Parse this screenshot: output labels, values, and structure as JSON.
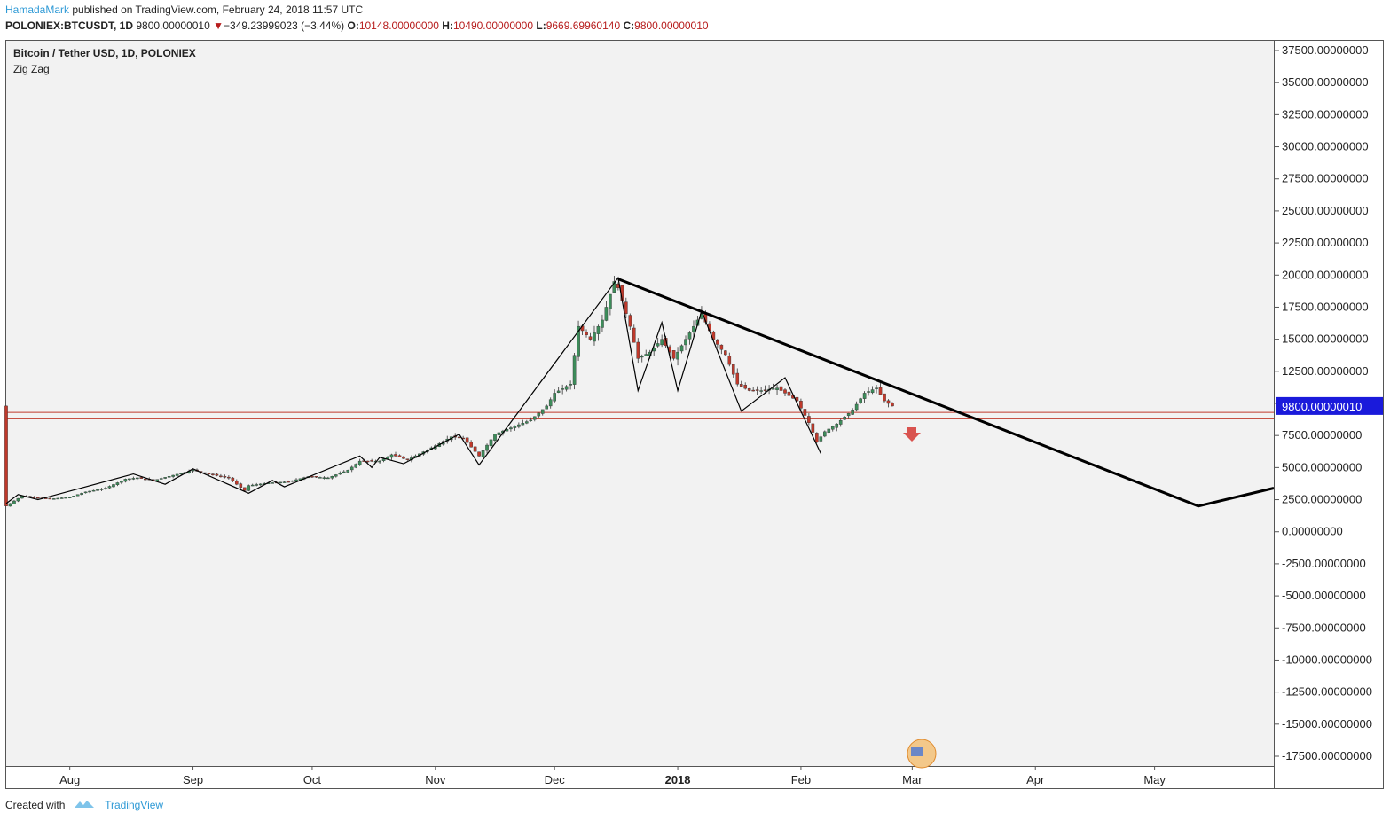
{
  "header": {
    "author": "HamadaMark",
    "published_text": "published on TradingView.com, February 24, 2018 11:57 UTC",
    "symbol": "POLONIEX:BTCUSDT, 1D",
    "last": "9800.00000010",
    "change": "−349.23999023 (−3.44%)",
    "open_label": "O:",
    "open": "10148.00000000",
    "high_label": "H:",
    "high": "10490.00000000",
    "low_label": "L:",
    "low": "9669.69960140",
    "close_label": "C:",
    "close": "9800.00000010"
  },
  "legend": {
    "title": "Bitcoin / Tether USD, 1D, POLONIEX",
    "indicator": "Zig Zag"
  },
  "footer": {
    "created_with": "Created with",
    "brand": "TradingView"
  },
  "colors": {
    "up": "#3d8c5a",
    "down": "#c0392b",
    "background": "#f2f2f2",
    "last_price_badge": "#1a1adb",
    "support_lines": "#c0392b"
  },
  "chart_data": {
    "type": "candlestick",
    "title": "Bitcoin / Tether USD, 1D, POLONIEX",
    "x_ticks": [
      "Aug",
      "Sep",
      "Oct",
      "Nov",
      "Dec",
      "2018",
      "Feb",
      "Mar",
      "Apr",
      "May"
    ],
    "x_tick_dates": [
      "2017-08-01",
      "2017-09-01",
      "2017-10-01",
      "2017-11-01",
      "2017-12-01",
      "2018-01-01",
      "2018-02-01",
      "2018-03-01",
      "2018-04-01",
      "2018-05-01"
    ],
    "y_ticks": [
      37500,
      35000,
      32500,
      30000,
      27500,
      25000,
      22500,
      20000,
      17500,
      15000,
      12500,
      10000,
      7500,
      5000,
      2500,
      0,
      -2500,
      -5000,
      -7500,
      -10000,
      -12500,
      -15000,
      -17500
    ],
    "y_tick_labels": [
      "37500.00000000",
      "35000.00000000",
      "32500.00000000",
      "30000.00000000",
      "27500.00000000",
      "25000.00000000",
      "22500.00000000",
      "20000.00000000",
      "17500.00000000",
      "15000.00000000",
      "12500.00000000",
      "",
      "7500.00000000",
      "5000.00000000",
      "2500.00000000",
      "0.00000000",
      "-2500.00000000",
      "-5000.00000000",
      "-7500.00000000",
      "-10000.00000000",
      "-12500.00000000",
      "-15000.00000000",
      "-17500.00000000"
    ],
    "ylim": [
      -18500,
      38000
    ],
    "x_range": [
      "2017-07-16",
      "2018-05-31"
    ],
    "last_price": 9800,
    "last_price_label": "9800.00000010",
    "support_levels": [
      9300,
      8800
    ],
    "series": [
      {
        "name": "BTCUSDT daily",
        "close_points": [
          [
            "2017-07-16",
            2000
          ],
          [
            "2017-07-20",
            2800
          ],
          [
            "2017-07-27",
            2550
          ],
          [
            "2017-08-01",
            2700
          ],
          [
            "2017-08-05",
            3100
          ],
          [
            "2017-08-10",
            3400
          ],
          [
            "2017-08-15",
            4100
          ],
          [
            "2017-08-18",
            4200
          ],
          [
            "2017-08-22",
            4000
          ],
          [
            "2017-08-27",
            4400
          ],
          [
            "2017-09-01",
            4800
          ],
          [
            "2017-09-05",
            4500
          ],
          [
            "2017-09-10",
            4200
          ],
          [
            "2017-09-14",
            3200
          ],
          [
            "2017-09-15",
            3600
          ],
          [
            "2017-09-20",
            3800
          ],
          [
            "2017-09-25",
            3900
          ],
          [
            "2017-09-30",
            4300
          ],
          [
            "2017-10-05",
            4200
          ],
          [
            "2017-10-10",
            4800
          ],
          [
            "2017-10-13",
            5500
          ],
          [
            "2017-10-18",
            5500
          ],
          [
            "2017-10-21",
            6000
          ],
          [
            "2017-10-25",
            5600
          ],
          [
            "2017-11-01",
            6700
          ],
          [
            "2017-11-05",
            7400
          ],
          [
            "2017-11-08",
            7300
          ],
          [
            "2017-11-12",
            5900
          ],
          [
            "2017-11-16",
            7600
          ],
          [
            "2017-11-20",
            8100
          ],
          [
            "2017-11-25",
            8700
          ],
          [
            "2017-11-29",
            9800
          ],
          [
            "2017-12-01",
            10800
          ],
          [
            "2017-12-05",
            11500
          ],
          [
            "2017-12-07",
            16000
          ],
          [
            "2017-12-10",
            15000
          ],
          [
            "2017-12-13",
            16500
          ],
          [
            "2017-12-16",
            19500
          ],
          [
            "2017-12-17",
            19000
          ],
          [
            "2017-12-20",
            16000
          ],
          [
            "2017-12-22",
            13500
          ],
          [
            "2017-12-25",
            14000
          ],
          [
            "2017-12-28",
            15000
          ],
          [
            "2017-12-31",
            13500
          ],
          [
            "2018-01-03",
            15000
          ],
          [
            "2018-01-07",
            17000
          ],
          [
            "2018-01-10",
            15000
          ],
          [
            "2018-01-13",
            13800
          ],
          [
            "2018-01-16",
            11500
          ],
          [
            "2018-01-19",
            11000
          ],
          [
            "2018-01-22",
            11000
          ],
          [
            "2018-01-26",
            11200
          ],
          [
            "2018-01-31",
            10200
          ],
          [
            "2018-02-03",
            8500
          ],
          [
            "2018-02-05",
            7000
          ],
          [
            "2018-02-07",
            7800
          ],
          [
            "2018-02-10",
            8400
          ],
          [
            "2018-02-14",
            9500
          ],
          [
            "2018-02-17",
            10800
          ],
          [
            "2018-02-20",
            11200
          ],
          [
            "2018-02-22",
            10200
          ],
          [
            "2018-02-24",
            9800
          ]
        ]
      },
      {
        "name": "Zig Zag",
        "points": [
          [
            "2017-07-16",
            2200
          ],
          [
            "2017-07-19",
            2900
          ],
          [
            "2017-07-24",
            2500
          ],
          [
            "2017-08-17",
            4500
          ],
          [
            "2017-08-25",
            3700
          ],
          [
            "2017-09-01",
            4900
          ],
          [
            "2017-09-15",
            3000
          ],
          [
            "2017-09-21",
            4000
          ],
          [
            "2017-09-24",
            3500
          ],
          [
            "2017-10-13",
            5900
          ],
          [
            "2017-10-16",
            5000
          ],
          [
            "2017-10-18",
            5800
          ],
          [
            "2017-10-24",
            5300
          ],
          [
            "2017-11-07",
            7600
          ],
          [
            "2017-11-12",
            5200
          ],
          [
            "2017-12-17",
            19800
          ],
          [
            "2017-12-22",
            11000
          ],
          [
            "2017-12-28",
            16300
          ],
          [
            "2018-01-01",
            11000
          ],
          [
            "2018-01-07",
            17200
          ],
          [
            "2018-01-17",
            9400
          ],
          [
            "2018-01-28",
            12000
          ],
          [
            "2018-02-06",
            6100
          ]
        ]
      },
      {
        "name": "Trendline",
        "points": [
          [
            "2017-12-17",
            19700
          ],
          [
            "2018-05-12",
            2000
          ],
          [
            "2018-05-31",
            3400
          ]
        ]
      }
    ]
  }
}
